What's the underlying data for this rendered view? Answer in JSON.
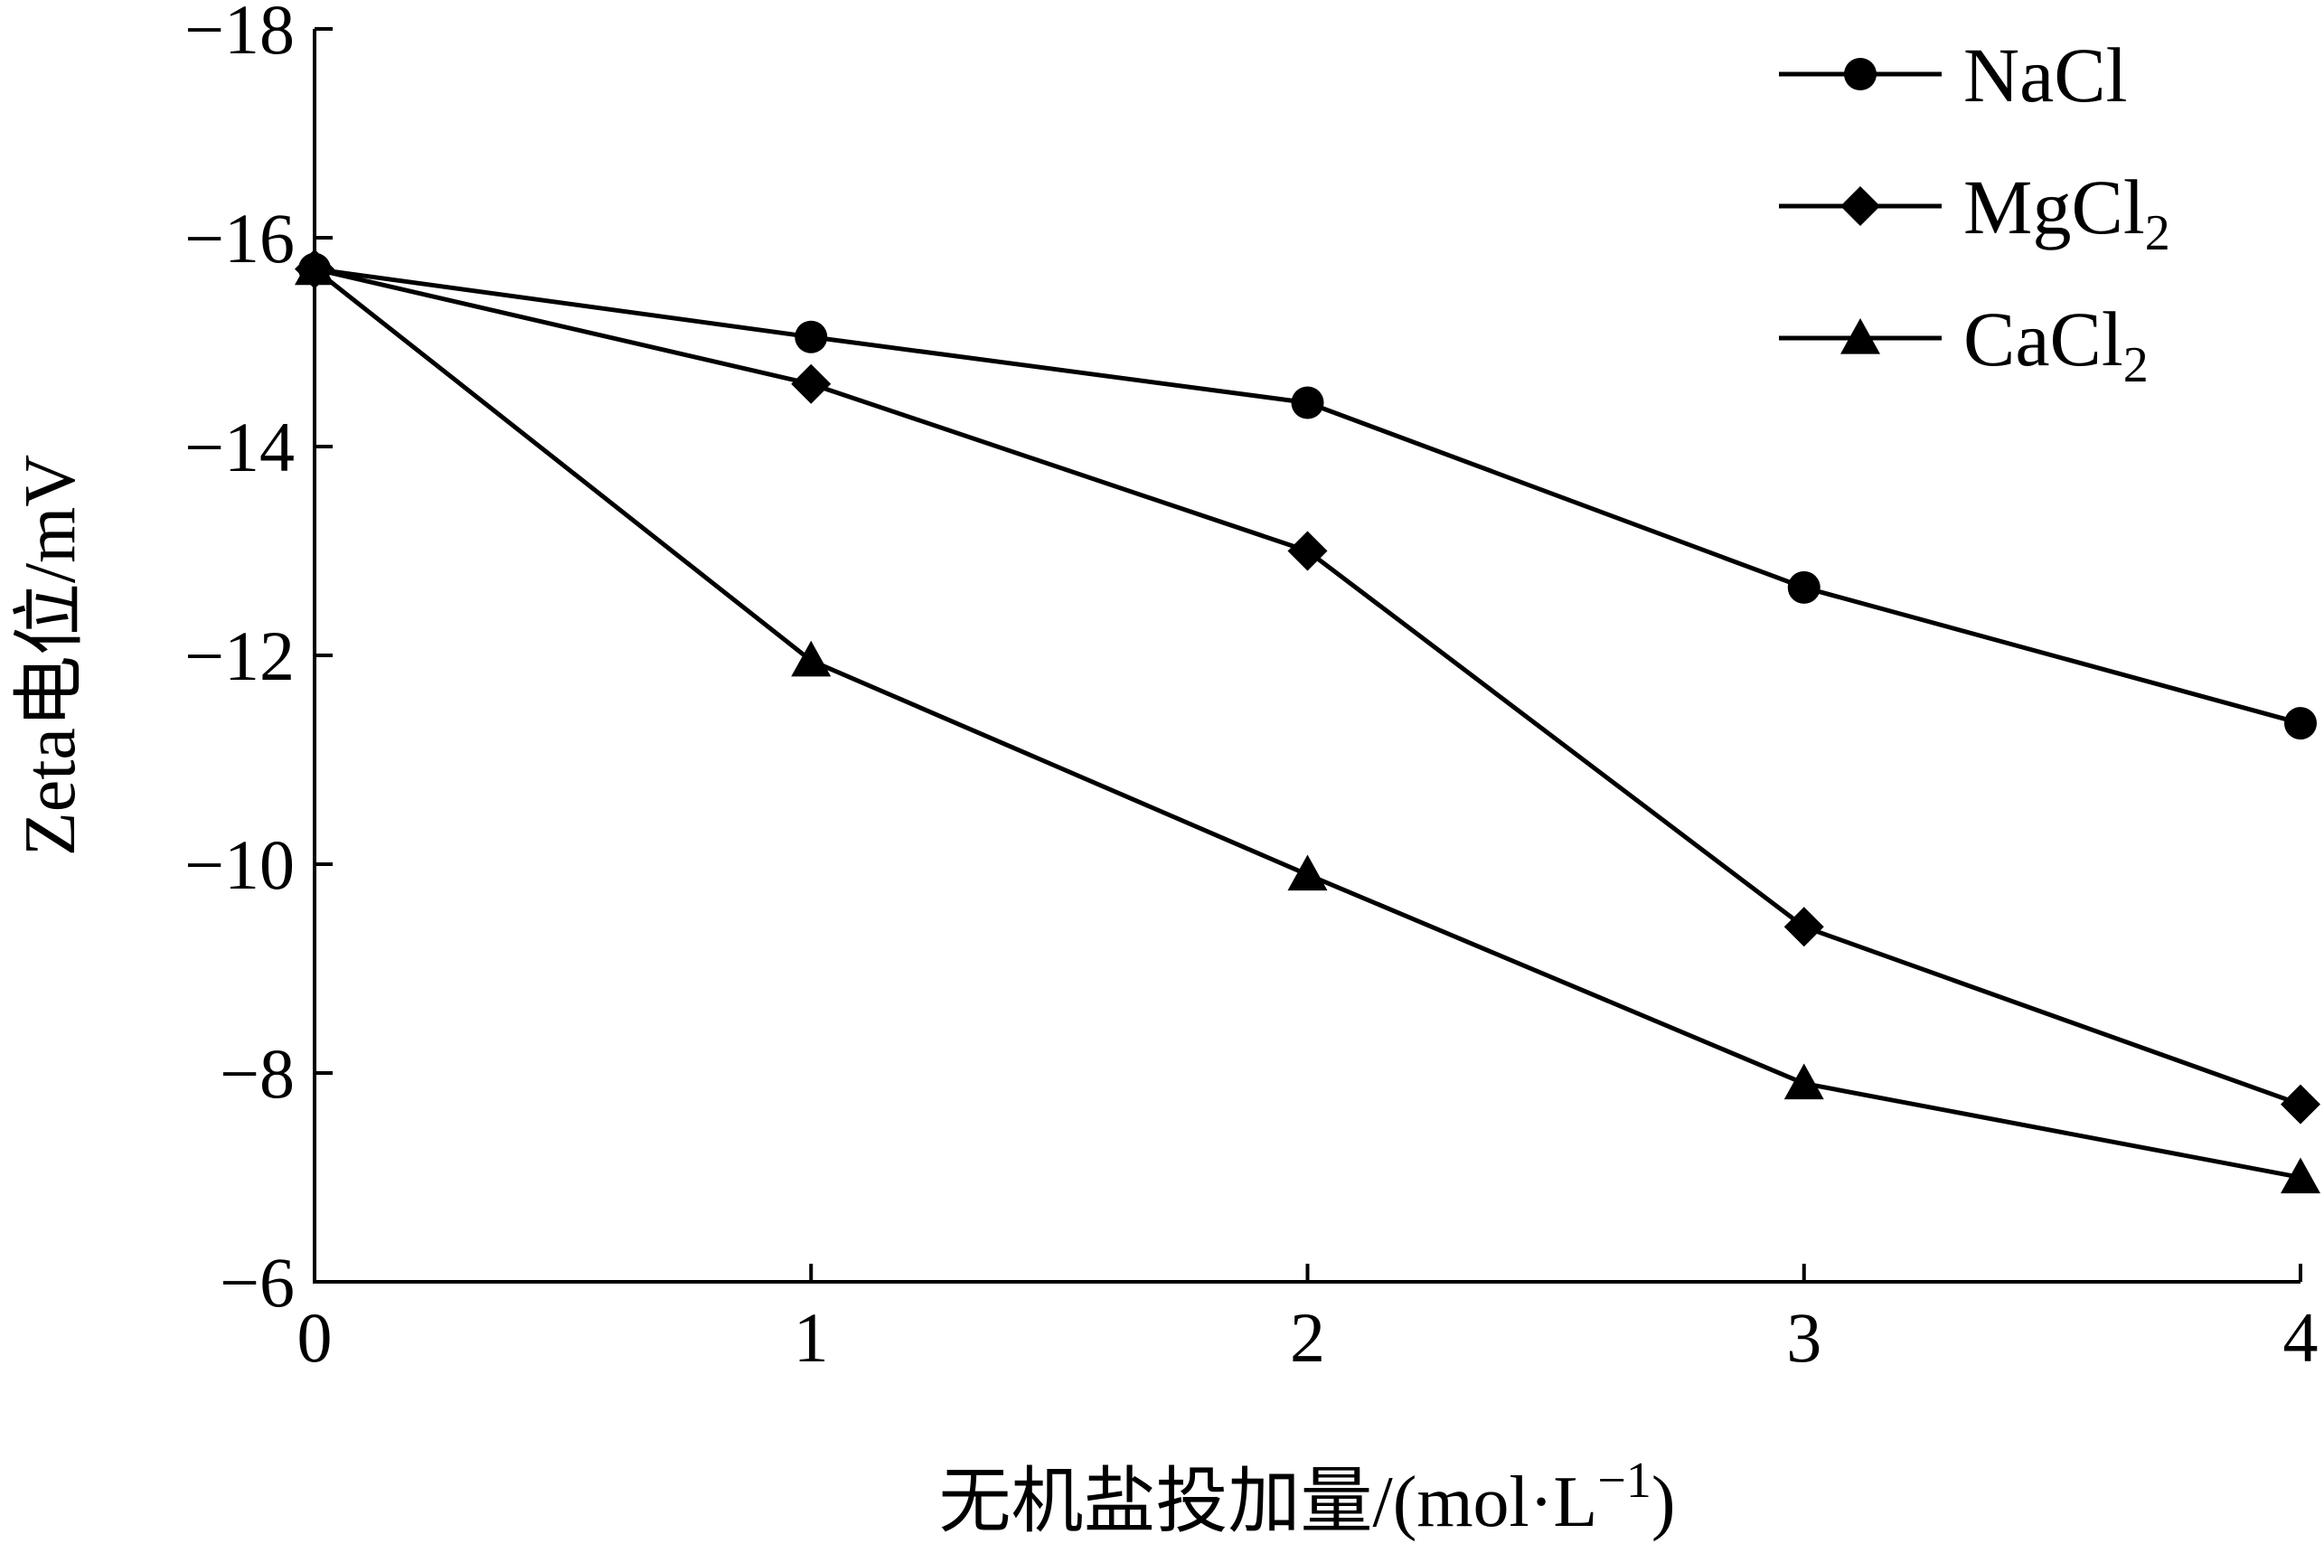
{
  "chart_data": {
    "type": "line",
    "title": "",
    "xlabel": "无机盐投加量/(mol·L⁻¹)",
    "ylabel": "Zeta电位/mV",
    "x": [
      0,
      1,
      2,
      3,
      4
    ],
    "xticks": [
      "0",
      "1",
      "2",
      "3",
      "4"
    ],
    "yticks": [
      "−6",
      "−8",
      "−10",
      "−12",
      "−14",
      "−16",
      "−18"
    ],
    "xlim": [
      0,
      4
    ],
    "ylim": [
      -6,
      -18
    ],
    "grid": false,
    "legend_position": "top-right",
    "series": [
      {
        "name": "NaCl",
        "name_main": "NaCl",
        "name_sub": "",
        "marker": "circle",
        "values": [
          -15.7,
          -15.05,
          -14.42,
          -12.65,
          -11.35
        ]
      },
      {
        "name": "MgCl2",
        "name_main": "MgCl",
        "name_sub": "2",
        "marker": "diamond",
        "values": [
          -15.7,
          -14.6,
          -13.0,
          -9.4,
          -7.7
        ]
      },
      {
        "name": "CaCl2",
        "name_main": "CaCl",
        "name_sub": "2",
        "marker": "triangle",
        "values": [
          -15.7,
          -11.95,
          -9.9,
          -7.9,
          -7.0
        ]
      }
    ],
    "colors": {
      "line": "#000000",
      "marker": "#000000",
      "background": "#ffffff"
    }
  }
}
